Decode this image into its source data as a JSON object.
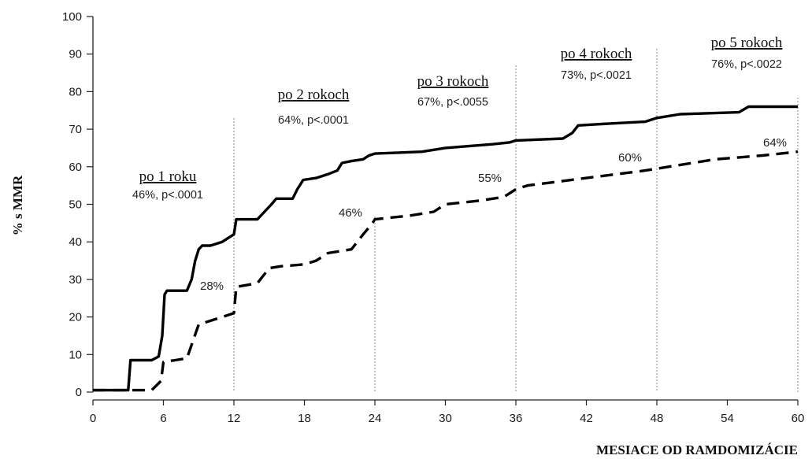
{
  "chart_data": {
    "type": "line",
    "xlabel": "MESIACE OD RAMDOMIZÁCIE",
    "ylabel": "% s MMR",
    "xlim": [
      0,
      60
    ],
    "ylim": [
      0,
      100
    ],
    "x_ticks": [
      0,
      6,
      12,
      18,
      24,
      30,
      36,
      42,
      48,
      54,
      60
    ],
    "y_ticks": [
      0,
      10,
      20,
      30,
      40,
      50,
      60,
      70,
      80,
      90,
      100
    ],
    "reference_lines_x": [
      12,
      24,
      36,
      48,
      60
    ],
    "series": [
      {
        "style": "solid",
        "points": [
          [
            0,
            0.5
          ],
          [
            2.5,
            0.5
          ],
          [
            3,
            0.5
          ],
          [
            3.2,
            8.5
          ],
          [
            5,
            8.5
          ],
          [
            5.6,
            9.5
          ],
          [
            5.9,
            15
          ],
          [
            6.1,
            26
          ],
          [
            6.3,
            27
          ],
          [
            8,
            27
          ],
          [
            8.4,
            30
          ],
          [
            8.7,
            35
          ],
          [
            9,
            38
          ],
          [
            9.3,
            39
          ],
          [
            10,
            39
          ],
          [
            11,
            40
          ],
          [
            11.5,
            41
          ],
          [
            12,
            42
          ],
          [
            12.2,
            46
          ],
          [
            14,
            46
          ],
          [
            14.6,
            48
          ],
          [
            15.2,
            50
          ],
          [
            15.6,
            51.5
          ],
          [
            17,
            51.5
          ],
          [
            17.4,
            54
          ],
          [
            17.9,
            56.5
          ],
          [
            19,
            57
          ],
          [
            20,
            58
          ],
          [
            20.8,
            59
          ],
          [
            21.2,
            61
          ],
          [
            22,
            61.5
          ],
          [
            23,
            62
          ],
          [
            23.5,
            63
          ],
          [
            24,
            63.5
          ],
          [
            28,
            64
          ],
          [
            30,
            65
          ],
          [
            32,
            65.5
          ],
          [
            34,
            66
          ],
          [
            35.5,
            66.5
          ],
          [
            36,
            67
          ],
          [
            40,
            67.5
          ],
          [
            40.8,
            69
          ],
          [
            41.3,
            71
          ],
          [
            44,
            71.5
          ],
          [
            47,
            72
          ],
          [
            48,
            73
          ],
          [
            50,
            74
          ],
          [
            55,
            74.5
          ],
          [
            55.8,
            76
          ],
          [
            60,
            76
          ]
        ]
      },
      {
        "style": "dashed",
        "points": [
          [
            0,
            0.5
          ],
          [
            5,
            0.5
          ],
          [
            5.8,
            3
          ],
          [
            6,
            8
          ],
          [
            7,
            8.5
          ],
          [
            8,
            9
          ],
          [
            9,
            18
          ],
          [
            10,
            19
          ],
          [
            11,
            20
          ],
          [
            12,
            21
          ],
          [
            12.2,
            28
          ],
          [
            14,
            29
          ],
          [
            15,
            33
          ],
          [
            16,
            33.5
          ],
          [
            18,
            34
          ],
          [
            19,
            35
          ],
          [
            20,
            37
          ],
          [
            22,
            38
          ],
          [
            23,
            42
          ],
          [
            23.8,
            45
          ],
          [
            24,
            46
          ],
          [
            27,
            47
          ],
          [
            29,
            48
          ],
          [
            30,
            50
          ],
          [
            33,
            51
          ],
          [
            35,
            52
          ],
          [
            36,
            54
          ],
          [
            37,
            55
          ],
          [
            42,
            57
          ],
          [
            47,
            59
          ],
          [
            49,
            60
          ],
          [
            53,
            62
          ],
          [
            55,
            62.5
          ],
          [
            57,
            63
          ],
          [
            60,
            64
          ]
        ]
      }
    ],
    "annotations": [
      {
        "head": "po 1 roku",
        "sub": "46%, p<.0001"
      },
      {
        "head": "po 2 rokoch",
        "sub": "64%, p<.0001"
      },
      {
        "head": "po 3 rokoch",
        "sub": "67%, p<.0055"
      },
      {
        "head": "po 4 rokoch",
        "sub": "73%, p<.0021"
      },
      {
        "head": "po 5 rokoch",
        "sub": "76%, p<.0022"
      }
    ],
    "value_labels": [
      "28%",
      "46%",
      "55%",
      "60%",
      "64%"
    ],
    "grid": false,
    "legend": "none"
  }
}
